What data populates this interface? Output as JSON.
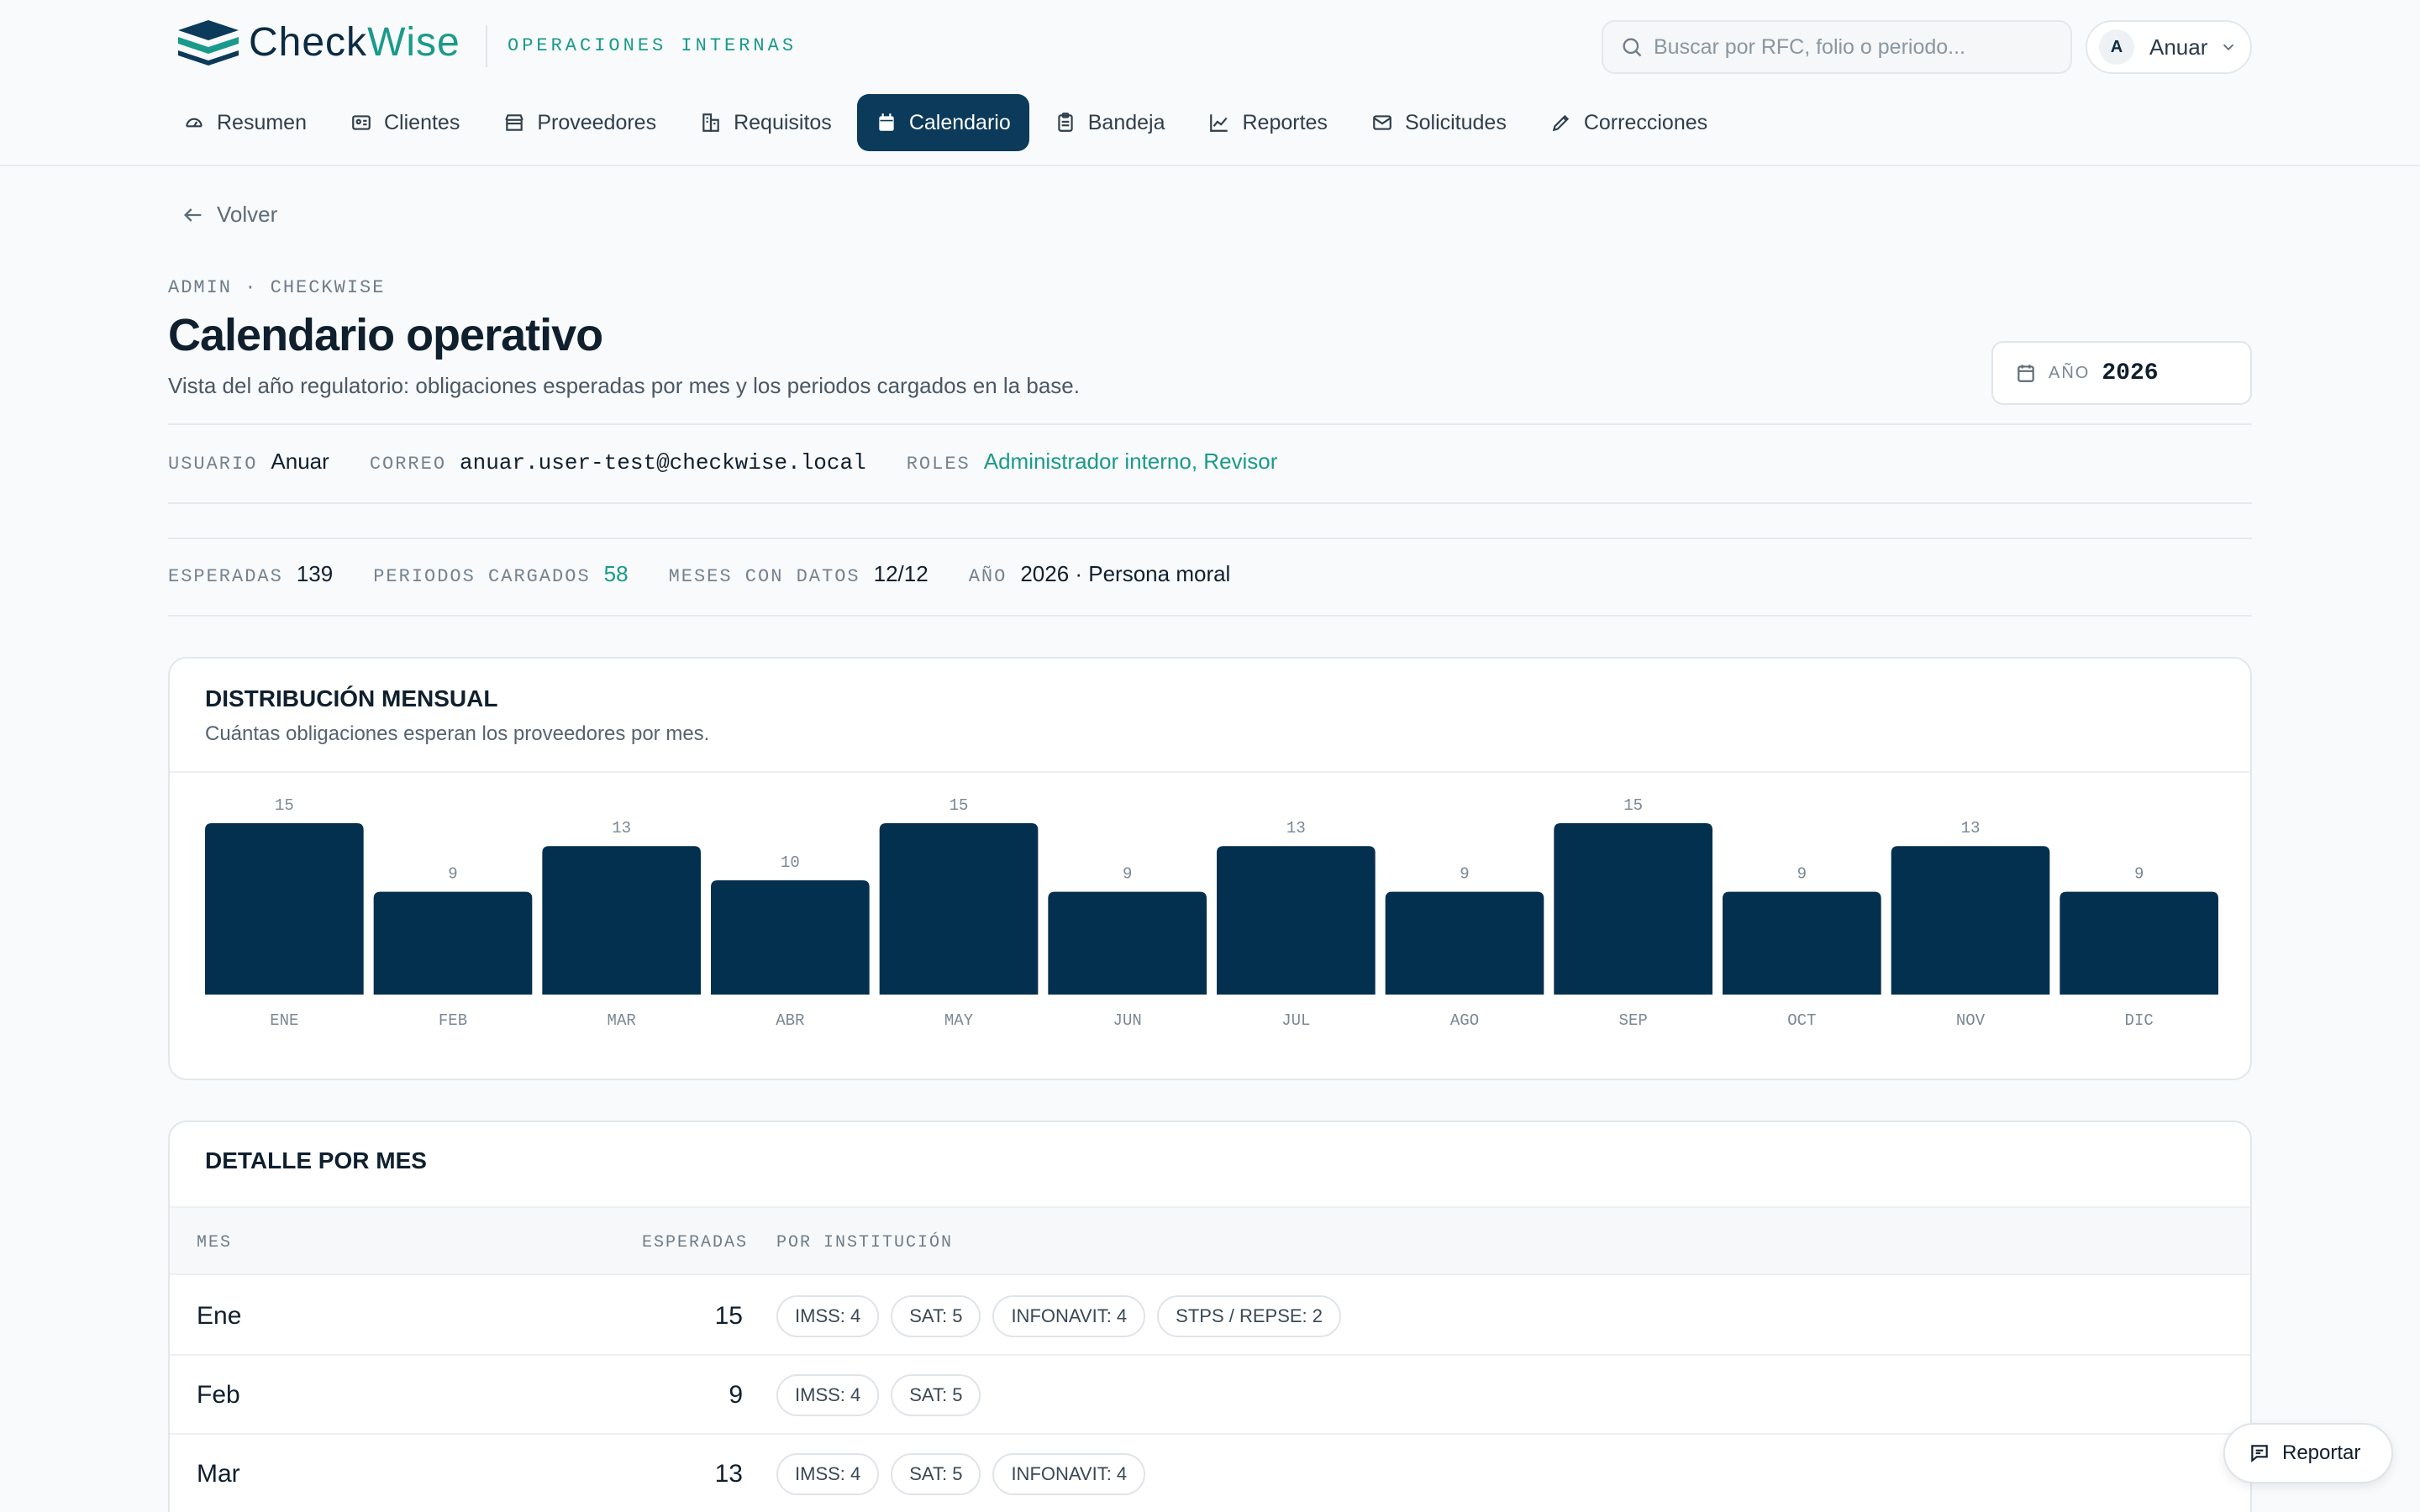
{
  "brand": {
    "name_a": "Check",
    "name_b": "Wise",
    "subtitle": "OPERACIONES INTERNAS"
  },
  "search": {
    "placeholder": "Buscar por RFC, folio o periodo..."
  },
  "user": {
    "initial": "A",
    "name": "Anuar"
  },
  "nav": [
    {
      "label": "Resumen",
      "icon": "dashboard-icon",
      "active": false
    },
    {
      "label": "Clientes",
      "icon": "id-card-icon",
      "active": false
    },
    {
      "label": "Proveedores",
      "icon": "store-icon",
      "active": false
    },
    {
      "label": "Requisitos",
      "icon": "building-icon",
      "active": false
    },
    {
      "label": "Calendario",
      "icon": "calendar-icon",
      "active": true
    },
    {
      "label": "Bandeja",
      "icon": "clipboard-icon",
      "active": false
    },
    {
      "label": "Reportes",
      "icon": "chart-line-icon",
      "active": false
    },
    {
      "label": "Solicitudes",
      "icon": "mail-icon",
      "active": false
    },
    {
      "label": "Correcciones",
      "icon": "pencil-icon",
      "active": false
    }
  ],
  "page": {
    "back_label": "Volver",
    "breadcrumb": "ADMIN · CHECKWISE",
    "title": "Calendario operativo",
    "subtitle": "Vista del año regulatorio: obligaciones esperadas por mes y los periodos cargados en la base.",
    "year_label": "AÑO",
    "year_value": "2026"
  },
  "meta": {
    "user_label": "USUARIO",
    "user_value": "Anuar",
    "email_label": "CORREO",
    "email_value": "anuar.user-test@checkwise.local",
    "roles_label": "ROLES",
    "roles_value": "Administrador interno, Revisor"
  },
  "stats": {
    "expected_label": "ESPERADAS",
    "expected_value": "139",
    "loaded_label": "PERIODOS CARGADOS",
    "loaded_value": "58",
    "months_label": "MESES CON DATOS",
    "months_value": "12/12",
    "year_label": "AÑO",
    "year_value": "2026 · Persona moral"
  },
  "distribution": {
    "title": "DISTRIBUCIÓN MENSUAL",
    "subtitle": "Cuántas obligaciones esperan los proveedores por mes."
  },
  "chart_data": {
    "type": "bar",
    "categories": [
      "ENE",
      "FEB",
      "MAR",
      "ABR",
      "MAY",
      "JUN",
      "JUL",
      "AGO",
      "SEP",
      "OCT",
      "NOV",
      "DIC"
    ],
    "values": [
      15,
      9,
      13,
      10,
      15,
      9,
      13,
      9,
      15,
      9,
      13,
      9
    ],
    "title": "DISTRIBUCIÓN MENSUAL",
    "xlabel": "",
    "ylabel": "",
    "bar_color": "#04304f"
  },
  "detail": {
    "title": "DETALLE POR MES",
    "col_month": "MES",
    "col_expected": "ESPERADAS",
    "col_institution": "POR INSTITUCIÓN",
    "rows": [
      {
        "month": "Ene",
        "expected": "15",
        "chips": [
          "IMSS: 4",
          "SAT: 5",
          "INFONAVIT: 4",
          "STPS / REPSE: 2"
        ]
      },
      {
        "month": "Feb",
        "expected": "9",
        "chips": [
          "IMSS: 4",
          "SAT: 5"
        ]
      },
      {
        "month": "Mar",
        "expected": "13",
        "chips": [
          "IMSS: 4",
          "SAT: 5",
          "INFONAVIT: 4"
        ]
      }
    ]
  },
  "report_button": {
    "label": "Reportar"
  },
  "colors": {
    "primary": "#0b3a5a",
    "accent": "#1a9a8a",
    "bar": "#04304f"
  }
}
